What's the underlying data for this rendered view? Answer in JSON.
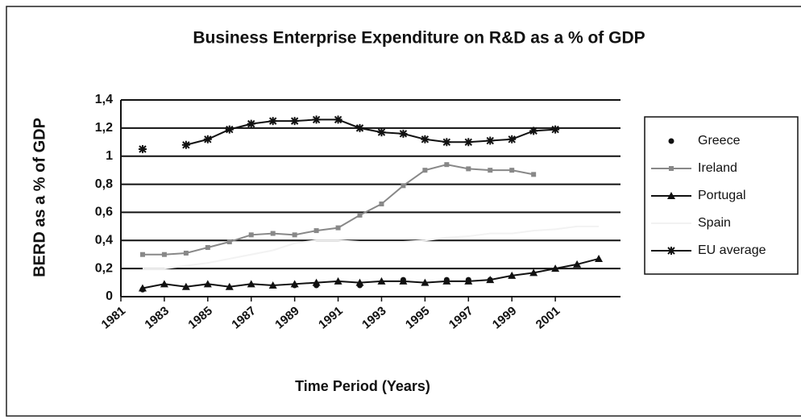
{
  "chart_data": {
    "type": "line",
    "title": "Business Enterprise Expenditure on R&D as a % of GDP",
    "ylabel": "BERD as a % of GDP",
    "xlabel": "Time Period (Years)",
    "x": [
      1982,
      1983,
      1984,
      1985,
      1986,
      1987,
      1988,
      1989,
      1990,
      1991,
      1992,
      1993,
      1994,
      1995,
      1996,
      1997,
      1998,
      1999,
      2000,
      2001,
      2002,
      2003
    ],
    "xlim": [
      1981,
      2004
    ],
    "xticks": [
      1981,
      1983,
      1985,
      1987,
      1989,
      1991,
      1993,
      1995,
      1997,
      1999,
      2001
    ],
    "ylim": [
      0,
      1.4
    ],
    "yticks": [
      0,
      {
        "value": 0.2,
        "label": "0,2"
      },
      {
        "value": 0.4,
        "label": "0,4"
      },
      {
        "value": 0.6,
        "label": "0,6"
      },
      {
        "value": 0.8,
        "label": "0,8"
      },
      1,
      {
        "value": 1.2,
        "label": "1,2"
      },
      {
        "value": 1.4,
        "label": "1,4"
      }
    ],
    "grid": true,
    "legend": "right",
    "series": [
      {
        "name": "Greece",
        "color": "#111111",
        "marker": "circle",
        "line": false,
        "values": [
          0.05,
          null,
          null,
          null,
          null,
          null,
          null,
          0.08,
          0.08,
          null,
          0.08,
          null,
          0.12,
          null,
          0.12,
          0.12,
          0.12,
          null,
          null,
          null,
          null,
          null
        ]
      },
      {
        "name": "Ireland",
        "color": "#888888",
        "marker": "square",
        "line": true,
        "values": [
          0.3,
          0.3,
          0.31,
          0.35,
          0.39,
          0.44,
          0.45,
          0.44,
          0.47,
          0.49,
          0.58,
          0.66,
          0.79,
          0.9,
          0.94,
          0.91,
          0.9,
          0.9,
          0.87,
          null,
          null,
          null
        ]
      },
      {
        "name": "Portugal",
        "color": "#111111",
        "marker": "triangle",
        "line": true,
        "values": [
          0.06,
          0.09,
          0.07,
          0.09,
          0.07,
          0.09,
          0.08,
          0.09,
          0.1,
          0.11,
          0.1,
          0.11,
          0.11,
          0.1,
          0.11,
          0.11,
          0.12,
          0.15,
          0.17,
          0.2,
          0.23,
          0.27
        ]
      },
      {
        "name": "Spain",
        "color": "#f2f2f2",
        "marker": "none",
        "line": true,
        "values": [
          0.2,
          0.2,
          0.22,
          0.24,
          0.27,
          0.3,
          0.33,
          0.38,
          0.4,
          0.4,
          0.39,
          0.39,
          0.39,
          0.4,
          0.42,
          0.43,
          0.45,
          0.45,
          0.47,
          0.48,
          0.5,
          0.5
        ]
      },
      {
        "name": "EU average",
        "color": "#111111",
        "marker": "asterisk",
        "line": true,
        "values": [
          1.05,
          null,
          1.08,
          1.12,
          1.19,
          1.23,
          1.25,
          1.25,
          1.26,
          1.26,
          1.2,
          1.17,
          1.16,
          1.12,
          1.1,
          1.1,
          1.11,
          1.12,
          1.18,
          1.19,
          null,
          null
        ]
      }
    ]
  }
}
